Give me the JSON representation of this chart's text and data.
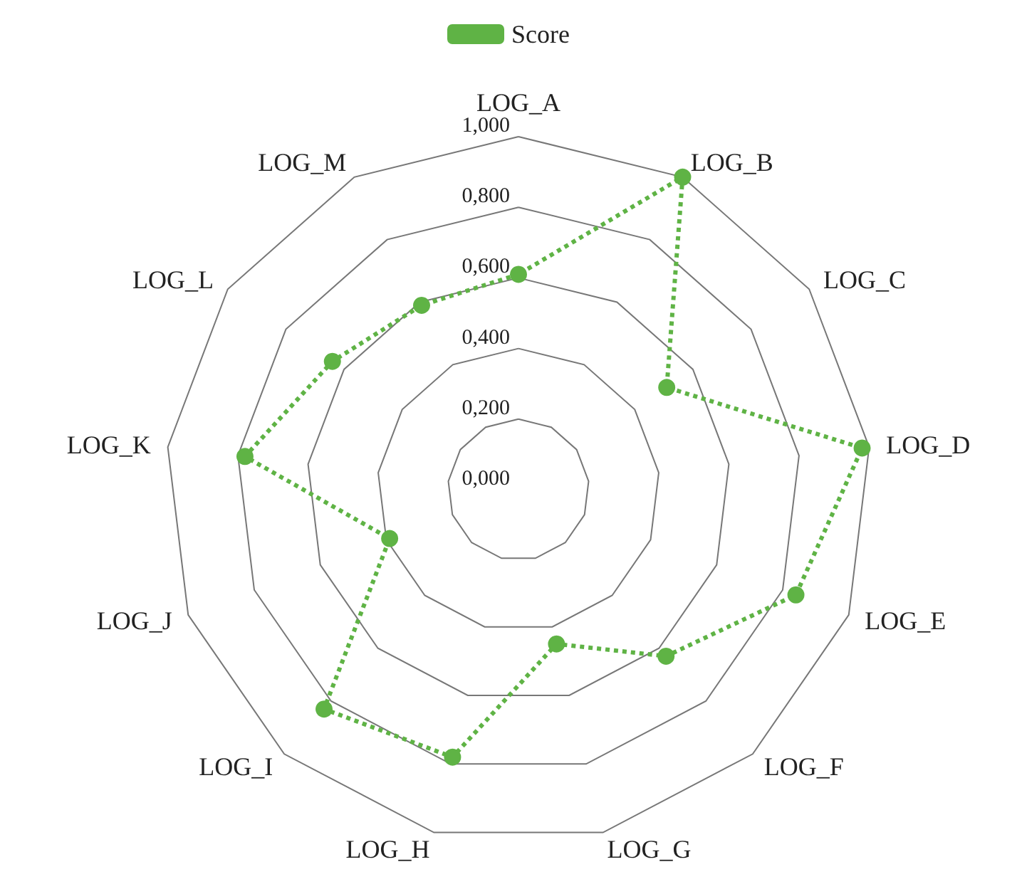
{
  "chart_data": {
    "type": "radar",
    "categories": [
      "LOG_A",
      "LOG_B",
      "LOG_C",
      "LOG_D",
      "LOG_E",
      "LOG_F",
      "LOG_G",
      "LOG_H",
      "LOG_I",
      "LOG_J",
      "LOG_K",
      "LOG_L",
      "LOG_M"
    ],
    "series": [
      {
        "name": "Score",
        "color": "#5fb345",
        "values": [
          0.61,
          1.0,
          0.51,
          0.98,
          0.84,
          0.63,
          0.45,
          0.78,
          0.83,
          0.39,
          0.78,
          0.64,
          0.59
        ]
      }
    ],
    "ylim": [
      0,
      1
    ],
    "yticks": [
      {
        "value": 0,
        "label": "0,000"
      },
      {
        "value": 0.2,
        "label": "0,200"
      },
      {
        "value": 0.4,
        "label": "0,400"
      },
      {
        "value": 0.6,
        "label": "0,600"
      },
      {
        "value": 0.8,
        "label": "0,800"
      },
      {
        "value": 1,
        "label": "1,000"
      }
    ],
    "legend": "top",
    "marker": "circle",
    "line_style": "dotted",
    "grid": true
  }
}
